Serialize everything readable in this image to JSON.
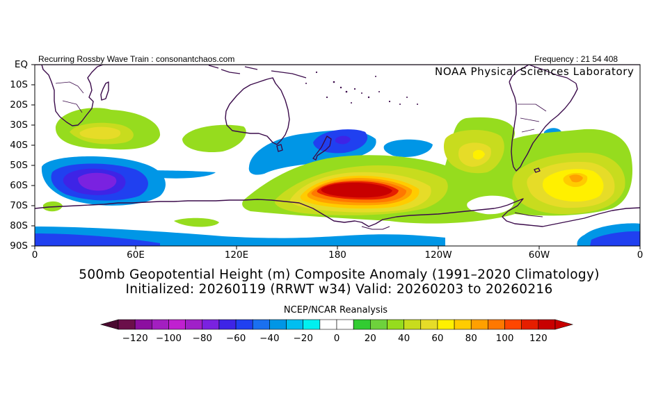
{
  "header": {
    "left_text": "Recurring Rossby Wave Train : consonantchaos.com",
    "right_text": "Frequency : 21 54 408",
    "lab_text": "NOAA Physical Sciences Laboratory"
  },
  "title": {
    "line1": "500mb Geopotential Height (m) Composite Anomaly (1991–2020 Climatology)",
    "line2": "Initialized: 20260119 (RRWT w34) Valid: 20260203 to 20260216"
  },
  "source_label": "NCEP/NCAR Reanalysis",
  "map": {
    "projection": "equirectangular",
    "lon_range": [
      0,
      360
    ],
    "lat_range": [
      -90,
      0
    ],
    "lat_labels": [
      "EQ",
      "10S",
      "20S",
      "30S",
      "40S",
      "50S",
      "60S",
      "70S",
      "80S",
      "90S"
    ],
    "lon_labels": [
      "0",
      "60E",
      "120E",
      "180",
      "120W",
      "60W",
      "0"
    ],
    "anomaly_features": [
      {
        "name": "south-africa-positive",
        "lon": 35,
        "lat": -34,
        "value": 30
      },
      {
        "name": "south-indian-negative",
        "lon": 40,
        "lat": -58,
        "value": -60
      },
      {
        "name": "west-australia-positive",
        "lon": 110,
        "lat": -38,
        "value": 20
      },
      {
        "name": "new-zealand-negative",
        "lon": 178,
        "lat": -40,
        "value": -50
      },
      {
        "name": "south-pacific-positive",
        "lon": 195,
        "lat": -62,
        "value": 110
      },
      {
        "name": "east-pacific-positive",
        "lon": 257,
        "lat": -45,
        "value": 50
      },
      {
        "name": "south-atlantic-positive",
        "lon": 308,
        "lat": -58,
        "value": 75
      },
      {
        "name": "antarctic-negative",
        "lon": 180,
        "lat": -86,
        "value": -20
      }
    ]
  },
  "colorbar": {
    "ticks": [
      "-120",
      "-100",
      "-80",
      "-60",
      "-40",
      "-20",
      "0",
      "20",
      "40",
      "60",
      "80",
      "100",
      "120"
    ],
    "colors": [
      "#6b0f4a",
      "#8c0fa0",
      "#a31fc0",
      "#c020d0",
      "#a020c8",
      "#7a22e0",
      "#3e24e6",
      "#2040f0",
      "#1a70f0",
      "#0096e6",
      "#00bef0",
      "#00f0f0",
      "#ffffff",
      "#ffffff",
      "#32cc32",
      "#6ed23c",
      "#96dc1e",
      "#c8dc1e",
      "#e6dc28",
      "#fff000",
      "#ffcc00",
      "#ffa000",
      "#ff7800",
      "#ff4600",
      "#e61e00",
      "#c80000"
    ]
  }
}
